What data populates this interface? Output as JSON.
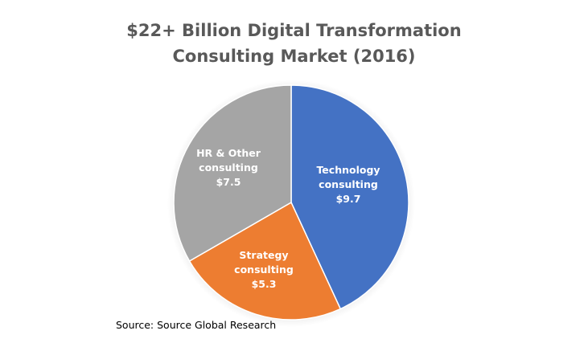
{
  "chart_data": {
    "type": "pie",
    "title_lines": [
      "$22+ Billion Digital Transformation",
      "Consulting Market (2016)"
    ],
    "slices": [
      {
        "label_lines": [
          "Technology",
          "consulting",
          "$9.7"
        ],
        "value": 9.7,
        "color": "#4472c4"
      },
      {
        "label_lines": [
          "Strategy",
          "consulting",
          "$5.3"
        ],
        "value": 5.3,
        "color": "#ed7d31"
      },
      {
        "label_lines": [
          "HR & Other",
          "consulting",
          "$7.5"
        ],
        "value": 7.5,
        "color": "#a5a5a5"
      }
    ],
    "start_angle_deg": 0,
    "direction": "clockwise",
    "legend": "none"
  },
  "source_text": "Source: Source Global Research"
}
